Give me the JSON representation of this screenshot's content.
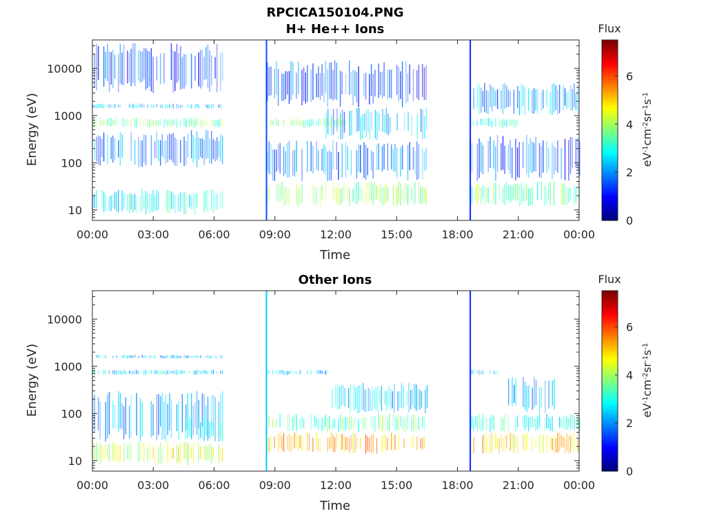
{
  "figure": {
    "main_title": "RPCICA150104.PNG"
  },
  "chart_data": [
    {
      "type": "heatmap",
      "title": "H+ He++ Ions",
      "xlabel": "Time",
      "ylabel": "Energy (eV)",
      "x_ticks": [
        "00:00",
        "03:00",
        "06:00",
        "09:00",
        "12:00",
        "15:00",
        "18:00",
        "21:00",
        "00:00"
      ],
      "x_range_hours": [
        0,
        24
      ],
      "y_scale": "log",
      "y_ticks": [
        {
          "value": 10,
          "label": "10"
        },
        {
          "value": 100,
          "label": "100"
        },
        {
          "value": 1000,
          "label": "1000"
        },
        {
          "value": 10000,
          "label": "10000"
        }
      ],
      "y_range": [
        6,
        40000
      ],
      "colorbar": {
        "title": "Flux",
        "label": "eV-1cm-2sr-1s-1",
        "range": [
          0,
          7.5
        ],
        "ticks": [
          0,
          2,
          4,
          6
        ],
        "colormap": "jet"
      },
      "data_gaps_hours": [
        [
          6.4,
          8.6
        ],
        [
          16.5,
          18.6
        ]
      ],
      "bands": [
        {
          "t0": 0.0,
          "t1": 6.4,
          "e0": 8,
          "e1": 28,
          "level": 2.8
        },
        {
          "t0": 0.0,
          "t1": 6.4,
          "e0": 550,
          "e1": 900,
          "level": 3.6
        },
        {
          "t0": 0.0,
          "t1": 6.4,
          "e0": 1400,
          "e1": 1800,
          "level": 2.4
        },
        {
          "t0": 0.0,
          "t1": 6.4,
          "e0": 3000,
          "e1": 35000,
          "level": 1.4
        },
        {
          "t0": 0.0,
          "t1": 6.4,
          "e0": 80,
          "e1": 500,
          "level": 2.0
        },
        {
          "t0": 8.6,
          "t1": 16.5,
          "e0": 12,
          "e1": 40,
          "level": 3.8
        },
        {
          "t0": 8.6,
          "t1": 12.5,
          "e0": 550,
          "e1": 900,
          "level": 3.4
        },
        {
          "t0": 11.5,
          "t1": 16.5,
          "e0": 300,
          "e1": 1500,
          "level": 2.2
        },
        {
          "t0": 8.6,
          "t1": 16.5,
          "e0": 40,
          "e1": 300,
          "level": 1.8
        },
        {
          "t0": 8.6,
          "t1": 16.5,
          "e0": 1500,
          "e1": 15000,
          "level": 1.5
        },
        {
          "t0": 18.6,
          "t1": 24.0,
          "e0": 12,
          "e1": 40,
          "level": 3.6
        },
        {
          "t0": 18.6,
          "t1": 21.0,
          "e0": 550,
          "e1": 900,
          "level": 3.2
        },
        {
          "t0": 18.6,
          "t1": 24.0,
          "e0": 1000,
          "e1": 5000,
          "level": 2.0
        },
        {
          "t0": 18.6,
          "t1": 24.0,
          "e0": 40,
          "e1": 400,
          "level": 1.6
        }
      ],
      "spikes": [
        {
          "t": 8.55,
          "level": 1.5
        },
        {
          "t": 18.6,
          "level": 1.2
        }
      ]
    },
    {
      "type": "heatmap",
      "title": "Other Ions",
      "xlabel": "Time",
      "ylabel": "Energy (eV)",
      "x_ticks": [
        "00:00",
        "03:00",
        "06:00",
        "09:00",
        "12:00",
        "15:00",
        "18:00",
        "21:00",
        "00:00"
      ],
      "x_range_hours": [
        0,
        24
      ],
      "y_scale": "log",
      "y_ticks": [
        {
          "value": 10,
          "label": "10"
        },
        {
          "value": 100,
          "label": "100"
        },
        {
          "value": 1000,
          "label": "1000"
        },
        {
          "value": 10000,
          "label": "10000"
        }
      ],
      "y_range": [
        6,
        40000
      ],
      "colorbar": {
        "title": "Flux",
        "label": "eV-1cm-2sr-1s-1",
        "range": [
          0,
          7.5
        ],
        "ticks": [
          0,
          2,
          4,
          6
        ],
        "colormap": "jet"
      },
      "data_gaps_hours": [
        [
          6.4,
          8.6
        ],
        [
          16.5,
          18.6
        ]
      ],
      "bands": [
        {
          "t0": 0.0,
          "t1": 6.4,
          "e0": 8,
          "e1": 25,
          "level": 4.4
        },
        {
          "t0": 0.0,
          "t1": 6.4,
          "e0": 25,
          "e1": 300,
          "level": 2.2
        },
        {
          "t0": 4.5,
          "t1": 6.4,
          "e0": 25,
          "e1": 90,
          "level": 3.0
        },
        {
          "t0": 0.0,
          "t1": 6.4,
          "e0": 650,
          "e1": 850,
          "level": 2.6
        },
        {
          "t0": 0.0,
          "t1": 6.4,
          "e0": 1450,
          "e1": 1750,
          "level": 2.3
        },
        {
          "t0": 8.6,
          "t1": 16.5,
          "e0": 14,
          "e1": 40,
          "level": 5.2
        },
        {
          "t0": 8.6,
          "t1": 16.5,
          "e0": 40,
          "e1": 100,
          "level": 3.4
        },
        {
          "t0": 11.8,
          "t1": 16.5,
          "e0": 100,
          "e1": 450,
          "level": 2.4
        },
        {
          "t0": 8.6,
          "t1": 12.0,
          "e0": 650,
          "e1": 850,
          "level": 2.6
        },
        {
          "t0": 18.6,
          "t1": 24.0,
          "e0": 14,
          "e1": 40,
          "level": 5.0
        },
        {
          "t0": 18.6,
          "t1": 24.0,
          "e0": 40,
          "e1": 100,
          "level": 3.0
        },
        {
          "t0": 20.5,
          "t1": 22.8,
          "e0": 100,
          "e1": 600,
          "level": 2.2
        },
        {
          "t0": 18.6,
          "t1": 20.2,
          "e0": 650,
          "e1": 850,
          "level": 2.5
        }
      ],
      "spikes": [
        {
          "t": 8.55,
          "level": 2.4
        },
        {
          "t": 18.6,
          "level": 1.2
        }
      ]
    }
  ]
}
